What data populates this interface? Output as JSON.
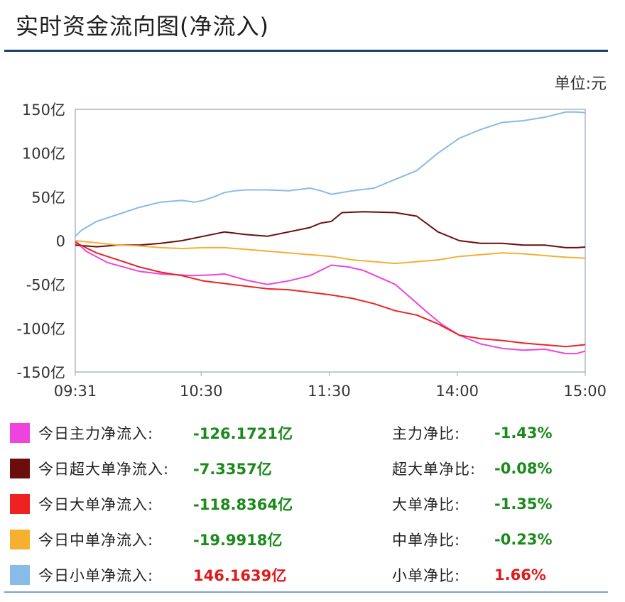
{
  "title": "实时资金流向图(净流入)",
  "unit": "单位:元",
  "colors": {
    "main": "#ee44dd",
    "super_large": "#6b0d0d",
    "large": "#ee2222",
    "medium": "#f5b030",
    "small": "#88bbe8",
    "axis": "#9aa4b6",
    "negative_text": "#1a8a1a",
    "positive_text": "#e01a1a"
  },
  "chart_data": {
    "type": "line",
    "title": "实时资金流向图(净流入)",
    "ylabel": "单位:元",
    "ylim": [
      -150,
      150
    ],
    "y_ticks": [
      "150亿",
      "100亿",
      "50亿",
      "0",
      "-50亿",
      "-100亿",
      "-150亿"
    ],
    "y_tick_values": [
      150,
      100,
      50,
      0,
      -50,
      -100,
      -150
    ],
    "x_ticks": [
      "09:31",
      "10:30",
      "11:30",
      "14:00",
      "15:00"
    ],
    "x_range_minutes": [
      0,
      239
    ],
    "x_tick_minutes": [
      0,
      59,
      119,
      179,
      239
    ],
    "grid": false,
    "series": [
      {
        "name": "今日主力净流入",
        "color_key": "main",
        "x": [
          0,
          5,
          15,
          30,
          40,
          55,
          65,
          70,
          80,
          90,
          100,
          110,
          120,
          128,
          135,
          150,
          158,
          165,
          172,
          180,
          190,
          200,
          210,
          220,
          230,
          235,
          239
        ],
        "y": [
          0,
          -12,
          -25,
          -35,
          -38,
          -40,
          -39,
          -38,
          -45,
          -50,
          -46,
          -40,
          -28,
          -30,
          -34,
          -50,
          -67,
          -82,
          -96,
          -108,
          -118,
          -123,
          -125,
          -124,
          -129,
          -129,
          -126.2
        ]
      },
      {
        "name": "今日超大单净流入",
        "color_key": "super_large",
        "x": [
          0,
          10,
          20,
          30,
          40,
          50,
          60,
          70,
          80,
          90,
          100,
          110,
          115,
          120,
          125,
          135,
          150,
          160,
          170,
          180,
          190,
          200,
          210,
          220,
          230,
          235,
          239
        ],
        "y": [
          -5,
          -7,
          -5,
          -5,
          -3,
          0,
          5,
          10,
          7,
          5,
          10,
          15,
          20,
          22,
          32,
          33,
          32,
          28,
          10,
          0,
          -3,
          -3,
          -5,
          -5,
          -8,
          -8,
          -7.3
        ]
      },
      {
        "name": "今日大单净流入",
        "color_key": "large",
        "x": [
          0,
          10,
          20,
          30,
          40,
          50,
          60,
          70,
          80,
          90,
          100,
          110,
          120,
          130,
          140,
          150,
          160,
          170,
          180,
          190,
          200,
          210,
          220,
          230,
          239
        ],
        "y": [
          -2,
          -14,
          -22,
          -30,
          -36,
          -40,
          -46,
          -49,
          -52,
          -55,
          -56,
          -59,
          -62,
          -66,
          -72,
          -80,
          -85,
          -95,
          -108,
          -112,
          -114,
          -117,
          -119,
          -121,
          -118.8
        ]
      },
      {
        "name": "今日中单净流入",
        "color_key": "medium",
        "x": [
          0,
          20,
          30,
          40,
          50,
          60,
          70,
          80,
          90,
          100,
          110,
          120,
          130,
          140,
          150,
          160,
          170,
          180,
          190,
          200,
          210,
          220,
          230,
          239
        ],
        "y": [
          0,
          -5,
          -6,
          -8,
          -9,
          -8,
          -8,
          -10,
          -12,
          -14,
          -16,
          -18,
          -22,
          -24,
          -26,
          -24,
          -22,
          -18,
          -16,
          -14,
          -15,
          -17,
          -19,
          -20
        ]
      },
      {
        "name": "今日小单净流入",
        "color_key": "small",
        "x": [
          0,
          3,
          10,
          20,
          30,
          40,
          50,
          56,
          60,
          65,
          70,
          75,
          80,
          90,
          100,
          110,
          115,
          120,
          130,
          140,
          150,
          160,
          165,
          170,
          180,
          190,
          200,
          210,
          220,
          230,
          235,
          239
        ],
        "y": [
          5,
          12,
          22,
          30,
          38,
          44,
          46,
          44,
          46,
          50,
          55,
          57,
          58,
          58,
          57,
          60,
          57,
          53,
          57,
          60,
          70,
          80,
          90,
          100,
          117,
          127,
          135,
          137,
          141,
          147,
          147,
          146.2
        ]
      }
    ]
  },
  "legend": [
    {
      "label": "今日主力净流入:",
      "value": "-126.1721亿",
      "ratio_label": "主力净比:",
      "ratio": "-1.43%",
      "color_key": "main",
      "sign": "neg"
    },
    {
      "label": "今日超大单净流入:",
      "value": "-7.3357亿",
      "ratio_label": "超大单净比:",
      "ratio": "-0.08%",
      "color_key": "super_large",
      "sign": "neg"
    },
    {
      "label": "今日大单净流入:",
      "value": "-118.8364亿",
      "ratio_label": "大单净比:",
      "ratio": "-1.35%",
      "color_key": "large",
      "sign": "neg"
    },
    {
      "label": "今日中单净流入:",
      "value": "-19.9918亿",
      "ratio_label": "中单净比:",
      "ratio": "-0.23%",
      "color_key": "medium",
      "sign": "neg"
    },
    {
      "label": "今日小单净流入:",
      "value": "146.1639亿",
      "ratio_label": "小单净比:",
      "ratio": "1.66%",
      "color_key": "small",
      "sign": "pos"
    }
  ]
}
